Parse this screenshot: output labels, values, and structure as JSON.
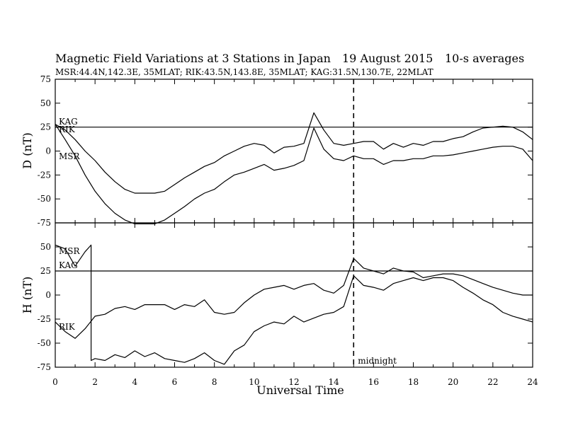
{
  "header": {
    "title": "Magnetic Field Variations at 3 Stations in Japan",
    "date": "19  August  2015",
    "averaging": "10-s averages",
    "stations": "MSR:44.4N,142.3E, 35MLAT;  RIK:43.5N,143.8E, 35MLAT;  KAG:31.5N,130.7E, 22MLAT"
  },
  "chart_data": [
    {
      "type": "line",
      "ylabel": "D (nT)",
      "xlabel": "",
      "xlim": [
        0,
        24
      ],
      "ylim": [
        -75,
        75
      ],
      "yticks": [
        "75",
        "50",
        "25",
        "0",
        "-25",
        "-50",
        "-75"
      ],
      "ytick_values": [
        75,
        50,
        25,
        0,
        -25,
        -50,
        -75
      ],
      "series": [
        {
          "name": "KAG",
          "x": [
            0,
            24
          ],
          "y": [
            25,
            25
          ]
        },
        {
          "name": "RIK",
          "x": [
            0,
            0.5,
            1,
            1.5,
            2,
            2.5,
            3,
            3.5,
            4,
            4.5,
            5,
            5.5,
            6,
            6.5,
            7,
            7.5,
            8,
            8.5,
            9,
            9.5,
            10,
            10.5,
            11,
            11.5,
            12,
            12.5,
            13,
            13.5,
            14,
            14.5,
            15,
            15.5,
            16,
            16.5,
            17,
            17.5,
            18,
            18.5,
            19,
            19.5,
            20,
            20.5,
            21,
            21.5,
            22,
            22.5,
            23,
            23.5,
            24
          ],
          "y": [
            28,
            22,
            12,
            0,
            -10,
            -22,
            -32,
            -40,
            -44,
            -44,
            -44,
            -42,
            -35,
            -28,
            -22,
            -16,
            -12,
            -5,
            0,
            5,
            8,
            6,
            -2,
            4,
            5,
            8,
            40,
            22,
            8,
            6,
            8,
            10,
            10,
            2,
            8,
            4,
            8,
            6,
            10,
            10,
            13,
            15,
            20,
            24,
            25,
            26,
            25,
            20,
            12
          ]
        },
        {
          "name": "MSR",
          "x": [
            0,
            0.5,
            1,
            1.5,
            2,
            2.5,
            3,
            3.5,
            4,
            4.5,
            5,
            5.5,
            6,
            6.5,
            7,
            7.5,
            8,
            8.5,
            9,
            9.5,
            10,
            10.5,
            11,
            11.5,
            12,
            12.5,
            13,
            13.5,
            14,
            14.5,
            15,
            15.5,
            16,
            16.5,
            17,
            17.5,
            18,
            18.5,
            19,
            19.5,
            20,
            20.5,
            21,
            21.5,
            22,
            22.5,
            23,
            23.5,
            24
          ],
          "y": [
            28,
            12,
            -5,
            -25,
            -42,
            -55,
            -65,
            -72,
            -76,
            -76,
            -76,
            -72,
            -65,
            -58,
            -50,
            -44,
            -40,
            -32,
            -25,
            -22,
            -18,
            -14,
            -20,
            -18,
            -15,
            -10,
            24,
            2,
            -8,
            -10,
            -5,
            -8,
            -8,
            -14,
            -10,
            -10,
            -8,
            -8,
            -5,
            -5,
            -4,
            -2,
            0,
            2,
            4,
            5,
            5,
            2,
            -10
          ]
        }
      ],
      "station_labels": [
        "KAG",
        "RIK",
        "MSR"
      ]
    },
    {
      "type": "line",
      "ylabel": "H (nT)",
      "xlabel": "Universal Time",
      "xlim": [
        0,
        24
      ],
      "ylim": [
        -75,
        75
      ],
      "yticks": [
        "50",
        "25",
        "0",
        "-25",
        "-50",
        "-75"
      ],
      "ytick_values": [
        50,
        25,
        0,
        -25,
        -50,
        -75
      ],
      "xticks": [
        "0",
        "2",
        "4",
        "6",
        "8",
        "10",
        "12",
        "14",
        "16",
        "18",
        "20",
        "22",
        "24"
      ],
      "xtick_values": [
        0,
        2,
        4,
        6,
        8,
        10,
        12,
        14,
        16,
        18,
        20,
        22,
        24
      ],
      "series": [
        {
          "name": "KAG",
          "x": [
            0,
            24
          ],
          "y": [
            25,
            25
          ]
        },
        {
          "name": "MSR",
          "x": [
            0,
            0.5,
            1,
            1.5,
            1.8,
            1.8,
            2,
            2.5,
            3,
            3.5,
            4,
            4.5,
            5,
            5.5,
            6,
            6.5,
            7,
            7.5,
            8,
            8.5,
            9,
            9.5,
            10,
            10.5,
            11,
            11.5,
            12,
            12.5,
            13,
            13.5,
            14,
            14.5,
            15,
            15.5,
            16,
            16.5,
            17,
            17.5,
            18,
            18.5,
            19,
            19.5,
            20,
            20.5,
            21,
            21.5,
            22,
            22.5,
            23,
            23.5,
            24
          ],
          "y": [
            52,
            48,
            30,
            45,
            52,
            -68,
            -66,
            -68,
            -62,
            -65,
            -58,
            -64,
            -60,
            -66,
            -68,
            -70,
            -66,
            -60,
            -68,
            -72,
            -58,
            -52,
            -38,
            -32,
            -28,
            -30,
            -22,
            -28,
            -24,
            -20,
            -18,
            -12,
            20,
            10,
            8,
            5,
            12,
            15,
            18,
            15,
            18,
            18,
            15,
            8,
            2,
            -5,
            -10,
            -18,
            -22,
            -25,
            -28
          ]
        },
        {
          "name": "RIK",
          "x": [
            0,
            0.5,
            1,
            1.5,
            2,
            2.5,
            3,
            3.5,
            4,
            4.5,
            5,
            5.5,
            6,
            6.5,
            7,
            7.5,
            8,
            8.5,
            9,
            9.5,
            10,
            10.5,
            11,
            11.5,
            12,
            12.5,
            13,
            13.5,
            14,
            14.5,
            15,
            15.5,
            16,
            16.5,
            17,
            17.5,
            18,
            18.5,
            19,
            19.5,
            20,
            20.5,
            21,
            21.5,
            22,
            22.5,
            23,
            23.5,
            24
          ],
          "y": [
            -28,
            -38,
            -45,
            -35,
            -22,
            -20,
            -14,
            -12,
            -15,
            -10,
            -10,
            -10,
            -15,
            -10,
            -12,
            -5,
            -18,
            -20,
            -18,
            -8,
            0,
            6,
            8,
            10,
            6,
            10,
            12,
            5,
            2,
            10,
            38,
            28,
            25,
            22,
            28,
            25,
            24,
            18,
            20,
            22,
            22,
            20,
            16,
            12,
            8,
            5,
            2,
            0,
            0
          ]
        }
      ],
      "station_labels": [
        "MSR",
        "KAG",
        "RIK"
      ],
      "annotations": [
        {
          "x": 15,
          "text": "midnight"
        }
      ]
    }
  ]
}
